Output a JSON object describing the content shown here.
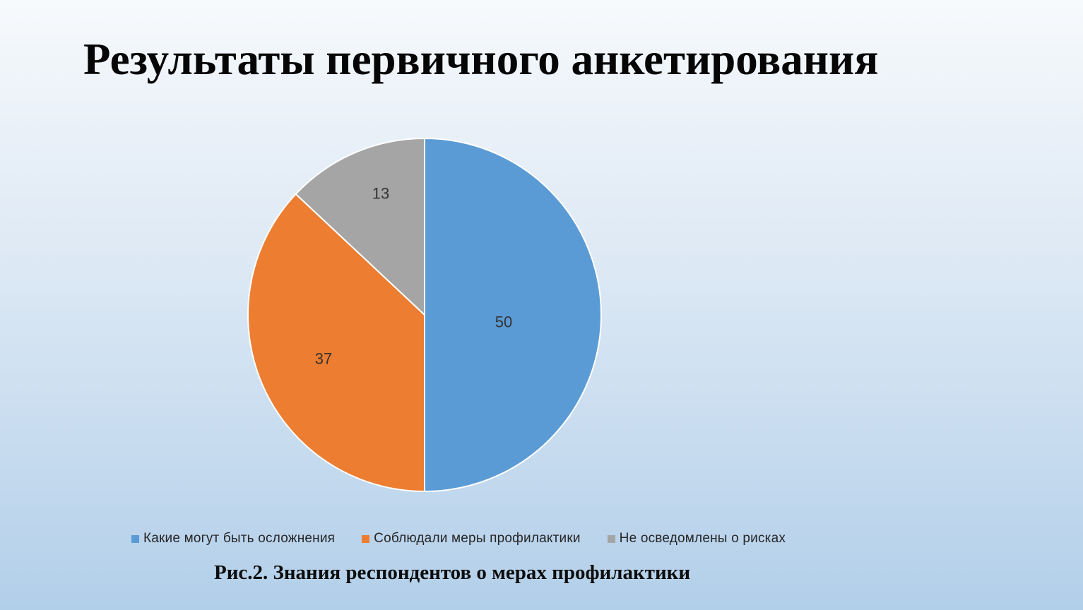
{
  "slide": {
    "title": "Результаты первичного анкетирования",
    "caption": "Рис.2. Знания респондентов о мерах профилактики",
    "background_top_color": "#F7FAFC",
    "background_bottom_color": "#B2CFE9"
  },
  "chart_data": {
    "type": "pie",
    "title": "",
    "start_angle_deg": 0,
    "direction": "clockwise",
    "legend_position": "bottom",
    "slice_border_color": "#FFFFFF",
    "data_label_color": "#333333",
    "slices": [
      {
        "label": "Какие могут быть осложнения",
        "value": 50,
        "color": "#5B9BD5"
      },
      {
        "label": "Соблюдали меры профилактики",
        "value": 37,
        "color": "#ED7D31"
      },
      {
        "label": "Не осведомлены о рисках",
        "value": 13,
        "color": "#A5A5A5"
      }
    ]
  }
}
